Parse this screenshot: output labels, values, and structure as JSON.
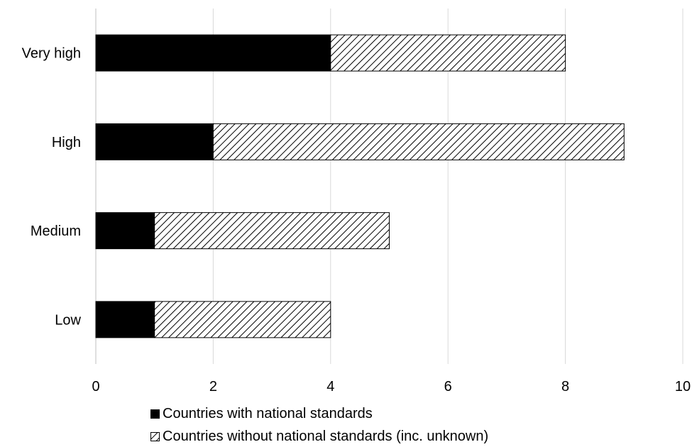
{
  "chart_data": {
    "type": "bar",
    "orientation": "horizontal",
    "stacked": true,
    "categories": [
      "Very high",
      "High",
      "Medium",
      "Low"
    ],
    "series": [
      {
        "name": "Countries with national standards",
        "values": [
          4,
          2,
          1,
          1
        ],
        "fill": "solid",
        "color": "#000000"
      },
      {
        "name": "Countries without national standards (inc. unknown)",
        "values": [
          4,
          7,
          4,
          3
        ],
        "fill": "hatch",
        "color": "#000000"
      }
    ],
    "xlim": [
      0,
      10
    ],
    "x_ticks": [
      "0",
      "2",
      "4",
      "6",
      "8",
      "10"
    ],
    "grid": "vertical",
    "legend_position": "bottom",
    "title": "",
    "xlabel": "",
    "ylabel": ""
  }
}
